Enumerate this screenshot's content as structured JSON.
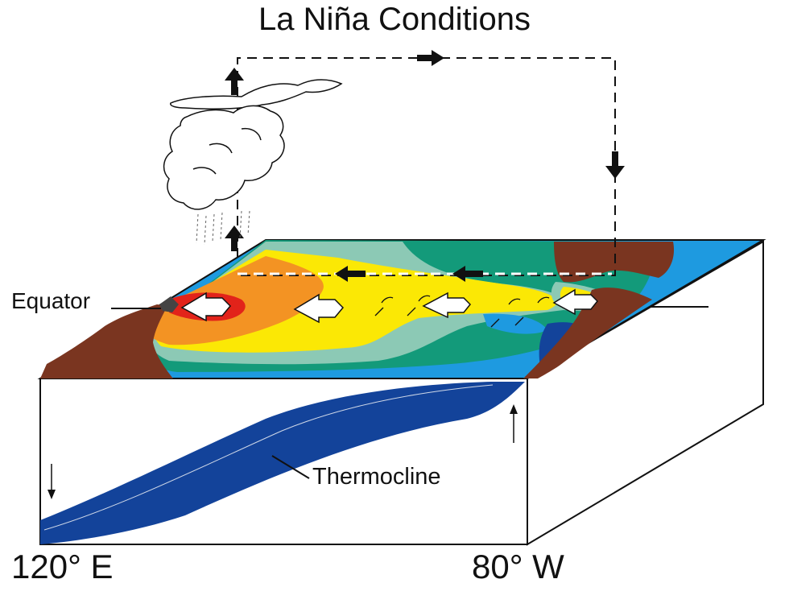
{
  "title": "La Niña Conditions",
  "labels": {
    "equator": "Equator",
    "thermocline": "Thermocline",
    "west_longitude": "120° E",
    "east_longitude": "80° W"
  },
  "colors": {
    "land": "#7a3520",
    "warm_pool_hot": "#e2231a",
    "warm_pool": "#f39323",
    "warm": "#fbe805",
    "mild": "#8cc9b5",
    "cool": "#139a7a",
    "cold": "#1e9ae0",
    "thermocline": "#13439a"
  }
}
